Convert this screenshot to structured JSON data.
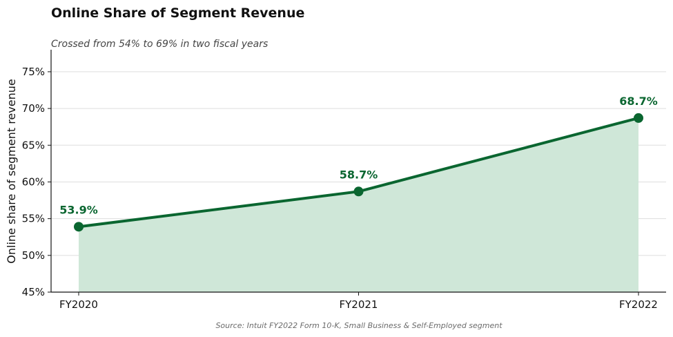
{
  "chart_data": {
    "type": "line",
    "title": "Online Share of Segment Revenue",
    "subtitle": "Crossed from 54% to 69% in two fiscal years",
    "ylabel": "Online share of segment revenue",
    "xlabel": "",
    "categories": [
      "FY2020",
      "FY2021",
      "FY2022"
    ],
    "series": [
      {
        "values": [
          53.9,
          58.7,
          68.7
        ],
        "labels": [
          "53.9%",
          "58.7%",
          "68.7%"
        ]
      }
    ],
    "ylim": [
      45,
      78
    ],
    "yticks": [
      45,
      50,
      55,
      60,
      65,
      70,
      75
    ],
    "ytick_labels": [
      "45%",
      "50%",
      "55%",
      "60%",
      "65%",
      "70%",
      "75%"
    ],
    "grid": true,
    "area_fill": true,
    "colors": {
      "line": "#0a6630",
      "fill": "#cfe7d8",
      "grid": "#dddddd"
    },
    "source": "Source: Intuit FY2022 Form 10-K, Small Business & Self-Employed segment"
  }
}
